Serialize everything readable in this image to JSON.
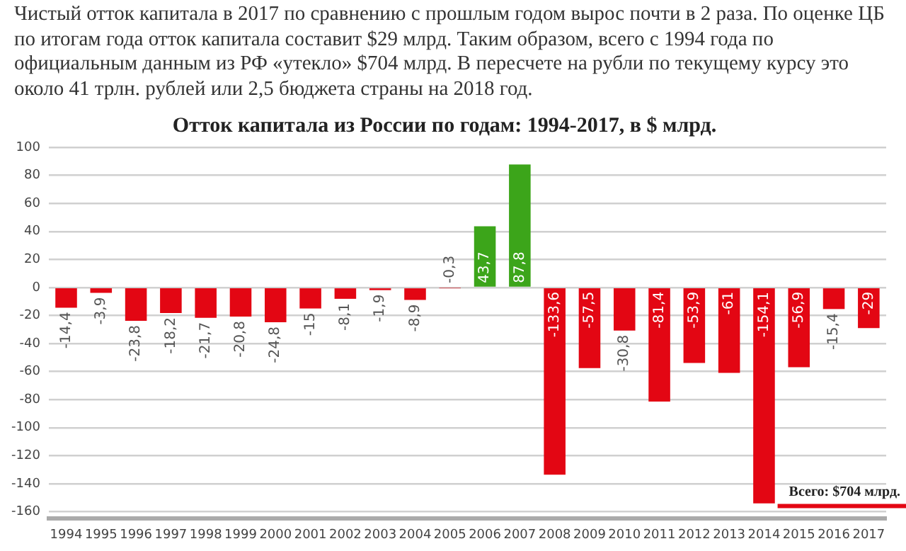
{
  "chart_data": {
    "type": "bar",
    "title": "Отток капитала из России по годам: 1994-2017, в $ млрд.",
    "subtitle": "Чистый отток капитала в 2017 по сравнению с прошлым годом вырос почти в 2 раза. По оценке ЦБ по итогам года отток капитала составит $29 млрд. Таким образом, всего с 1994 года по официальным данным из РФ «утекло» $704 млрд. В пересчете на рубли по текущему курсу это около 41 трлн. рублей или 2,5 бюджета страны на 2018 год.",
    "categories": [
      "1994",
      "1995",
      "1996",
      "1997",
      "1998",
      "1999",
      "2000",
      "2001",
      "2002",
      "2003",
      "2004",
      "2005",
      "2006",
      "2007",
      "2008",
      "2009",
      "2010",
      "2011",
      "2012",
      "2013",
      "2014",
      "2015",
      "2016",
      "2017"
    ],
    "values": [
      -14.4,
      -3.9,
      -23.8,
      -18.2,
      -21.7,
      -20.8,
      -24.8,
      -15,
      -8.1,
      -1.9,
      -8.9,
      -0.3,
      43.7,
      87.8,
      -133.6,
      -57.5,
      -30.8,
      -81.4,
      -53.9,
      -61,
      -154.1,
      -56.9,
      -15.4,
      -29
    ],
    "value_labels": [
      "-14,4",
      "-3,9",
      "-23,8",
      "-18,2",
      "-21,7",
      "-20,8",
      "-24,8",
      "-15",
      "-8,1",
      "-1,9",
      "-8,9",
      "-0,3",
      "43,7",
      "87,8",
      "-133,6",
      "-57,5",
      "-30,8",
      "-81,4",
      "-53,9",
      "-61",
      "-154,1",
      "-56,9",
      "-15,4",
      "-29"
    ],
    "colors": [
      "#e30613",
      "#e30613",
      "#e30613",
      "#e30613",
      "#e30613",
      "#e30613",
      "#e30613",
      "#e30613",
      "#e30613",
      "#e30613",
      "#e30613",
      "#e30613",
      "#3ca51a",
      "#3ca51a",
      "#e30613",
      "#e30613",
      "#e30613",
      "#e30613",
      "#e30613",
      "#e30613",
      "#e30613",
      "#e30613",
      "#e30613",
      "#e30613"
    ],
    "ylim": [
      -165,
      100
    ],
    "yticks": [
      -160,
      -140,
      -120,
      -100,
      -80,
      -60,
      -40,
      -20,
      0,
      20,
      40,
      60,
      80,
      100
    ],
    "grid": "y",
    "legend": false,
    "annotations": [
      "Всего: $704 млрд."
    ]
  }
}
